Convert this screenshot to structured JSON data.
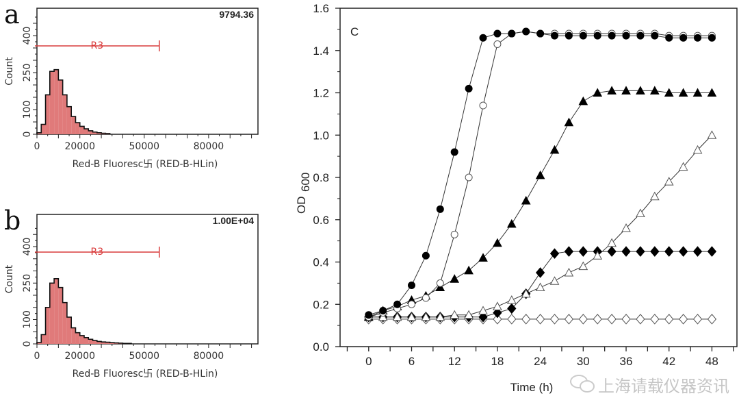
{
  "chart_data": [
    {
      "type": "bar",
      "panel_label": "a",
      "stat_value": "9794.36",
      "gate_label": "R3",
      "gate_range": [
        0,
        57000
      ],
      "xlabel": "Red-B Fluoresc卐 (RED-B-HLin)",
      "ylabel": "Count",
      "xticks": [
        "0",
        "20000",
        "50000",
        "80000"
      ],
      "xtick_values": [
        0,
        20000,
        50000,
        80000
      ],
      "yticks": [
        "0",
        "100",
        "250",
        "400"
      ],
      "ytick_values": [
        0,
        100,
        250,
        400
      ],
      "xlim": [
        0,
        103000
      ],
      "ylim": [
        0,
        500
      ],
      "bin_width": 2000,
      "bin_starts": [
        0,
        2000,
        4000,
        6000,
        8000,
        10000,
        12000,
        14000,
        16000,
        18000,
        20000,
        22000,
        24000,
        26000,
        28000,
        30000,
        32000
      ],
      "values": [
        6,
        40,
        160,
        255,
        262,
        220,
        160,
        112,
        72,
        47,
        32,
        22,
        14,
        9,
        6,
        4,
        3
      ],
      "fill_color": "#e07a7a",
      "gate_color": "#d93a3a"
    },
    {
      "type": "bar",
      "panel_label": "b",
      "stat_value": "1.00E+04",
      "gate_label": "R3",
      "gate_range": [
        0,
        57000
      ],
      "xlabel": "Red-B Fluoresc卐 (RED-B-HLin)",
      "ylabel": "Count",
      "xticks": [
        "0",
        "20000",
        "50000",
        "80000"
      ],
      "xtick_values": [
        0,
        20000,
        50000,
        80000
      ],
      "yticks": [
        "0",
        "100",
        "250",
        "400"
      ],
      "ytick_values": [
        0,
        100,
        250,
        400
      ],
      "xlim": [
        0,
        103000
      ],
      "ylim": [
        0,
        500
      ],
      "bin_width": 2000,
      "bin_starts": [
        0,
        2000,
        4000,
        6000,
        8000,
        10000,
        12000,
        14000,
        16000,
        18000,
        20000,
        22000,
        24000,
        26000,
        28000,
        30000,
        32000,
        34000,
        36000,
        38000,
        40000,
        42000
      ],
      "values": [
        6,
        38,
        150,
        250,
        268,
        232,
        170,
        110,
        66,
        46,
        34,
        26,
        19,
        14,
        10,
        8,
        7,
        5,
        4,
        3,
        2,
        2
      ],
      "fill_color": "#e07a7a",
      "gate_color": "#d93a3a"
    },
    {
      "type": "line",
      "panel_label": "C",
      "xlabel": "Time (h)",
      "ylabel": "OD",
      "ylabel_sub": "600",
      "xlim": [
        -4,
        51.5
      ],
      "ylim": [
        0,
        1.6
      ],
      "xticks": [
        "0",
        "6",
        "12",
        "18",
        "24",
        "30",
        "36",
        "42",
        "48"
      ],
      "xtick_values": [
        0,
        6,
        12,
        18,
        24,
        30,
        36,
        42,
        48
      ],
      "yticks": [
        "0.0",
        "0.2",
        "0.4",
        "0.6",
        "0.8",
        "1.0",
        "1.2",
        "1.4",
        "1.6"
      ],
      "ytick_values": [
        0,
        0.2,
        0.4,
        0.6,
        0.8,
        1.0,
        1.2,
        1.4,
        1.6
      ],
      "x": [
        0,
        2,
        4,
        6,
        8,
        10,
        12,
        14,
        16,
        18,
        20,
        22,
        24,
        26,
        28,
        30,
        32,
        34,
        36,
        38,
        40,
        42,
        44,
        46,
        48
      ],
      "series": [
        {
          "marker": "circle-filled",
          "values": [
            0.15,
            0.17,
            0.2,
            0.29,
            0.43,
            0.65,
            0.92,
            1.22,
            1.46,
            1.48,
            1.48,
            1.49,
            1.48,
            1.47,
            1.47,
            1.47,
            1.47,
            1.47,
            1.47,
            1.47,
            1.47,
            1.46,
            1.46,
            1.46,
            1.46
          ]
        },
        {
          "marker": "circle-open",
          "values": [
            0.14,
            0.16,
            0.18,
            0.2,
            0.23,
            0.3,
            0.53,
            0.8,
            1.14,
            1.43,
            1.48,
            1.49,
            1.48,
            1.48,
            1.48,
            1.48,
            1.48,
            1.48,
            1.48,
            1.48,
            1.48,
            1.47,
            1.47,
            1.47,
            1.47
          ]
        },
        {
          "marker": "triangle-filled",
          "values": [
            0.14,
            0.17,
            0.19,
            0.22,
            0.24,
            0.28,
            0.32,
            0.36,
            0.42,
            0.49,
            0.58,
            0.69,
            0.81,
            0.93,
            1.06,
            1.16,
            1.2,
            1.21,
            1.21,
            1.21,
            1.21,
            1.2,
            1.2,
            1.2,
            1.2
          ]
        },
        {
          "marker": "triangle-open",
          "values": [
            0.14,
            0.14,
            0.14,
            0.14,
            0.14,
            0.14,
            0.15,
            0.15,
            0.17,
            0.19,
            0.22,
            0.25,
            0.28,
            0.31,
            0.35,
            0.38,
            0.43,
            0.49,
            0.56,
            0.63,
            0.71,
            0.78,
            0.85,
            0.93,
            1.0
          ]
        },
        {
          "marker": "diamond-filled",
          "values": [
            0.14,
            0.14,
            0.14,
            0.14,
            0.14,
            0.14,
            0.14,
            0.14,
            0.14,
            0.16,
            0.18,
            0.25,
            0.35,
            0.44,
            0.45,
            0.45,
            0.45,
            0.45,
            0.45,
            0.45,
            0.45,
            0.45,
            0.45,
            0.45,
            0.45
          ]
        },
        {
          "marker": "diamond-open",
          "values": [
            0.13,
            0.13,
            0.13,
            0.13,
            0.13,
            0.13,
            0.13,
            0.13,
            0.13,
            0.13,
            0.13,
            0.13,
            0.13,
            0.13,
            0.13,
            0.13,
            0.13,
            0.13,
            0.13,
            0.13,
            0.13,
            0.13,
            0.13,
            0.13,
            0.13
          ]
        }
      ]
    }
  ],
  "watermark": {
    "text": "上海请载仪器资讯",
    "icon": "wechat-icon"
  }
}
